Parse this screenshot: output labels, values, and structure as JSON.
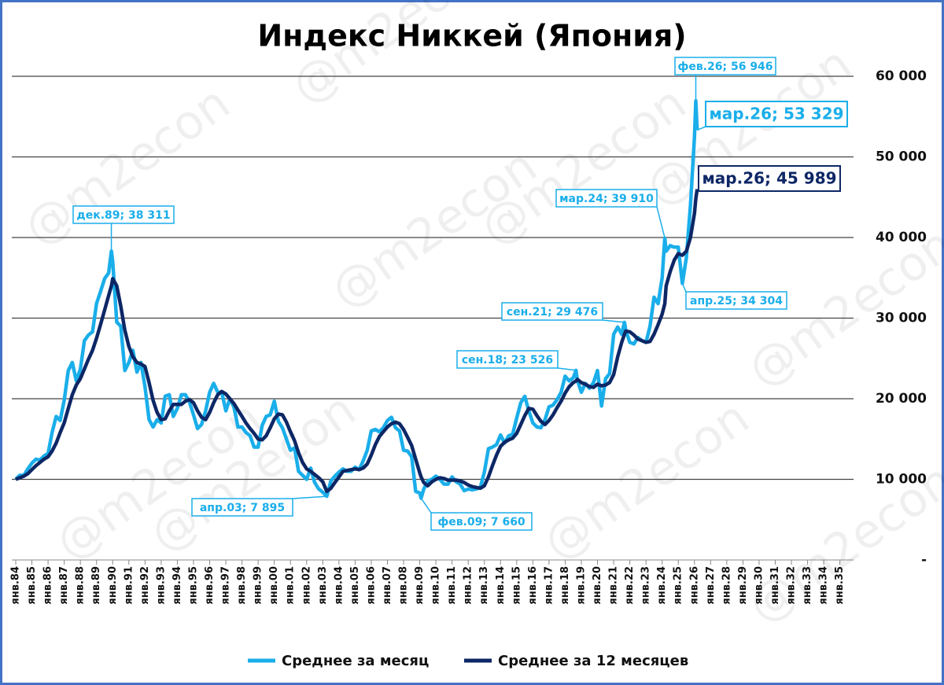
{
  "chart_data": {
    "type": "line",
    "title": "Индекс Никкей (Япония)",
    "watermark": "@m2econ",
    "grid": true,
    "ylim": [
      0,
      60000
    ],
    "yticks": [
      {
        "value": 0,
        "label": "-"
      },
      {
        "value": 10000,
        "label": "10 000"
      },
      {
        "value": 20000,
        "label": "20 000"
      },
      {
        "value": 30000,
        "label": "30 000"
      },
      {
        "value": 40000,
        "label": "40 000"
      },
      {
        "value": 50000,
        "label": "50 000"
      },
      {
        "value": 60000,
        "label": "60 000"
      }
    ],
    "xlim": [
      1984,
      2035.6
    ],
    "xticks": [
      {
        "value": 1984,
        "label": "янв.84"
      },
      {
        "value": 1985,
        "label": "янв.85"
      },
      {
        "value": 1986,
        "label": "янв.86"
      },
      {
        "value": 1987,
        "label": "янв.87"
      },
      {
        "value": 1988,
        "label": "янв.88"
      },
      {
        "value": 1989,
        "label": "янв.89"
      },
      {
        "value": 1990,
        "label": "янв.90"
      },
      {
        "value": 1991,
        "label": "янв.91"
      },
      {
        "value": 1992,
        "label": "янв.92"
      },
      {
        "value": 1993,
        "label": "янв.93"
      },
      {
        "value": 1994,
        "label": "янв.94"
      },
      {
        "value": 1995,
        "label": "янв.95"
      },
      {
        "value": 1996,
        "label": "янв.96"
      },
      {
        "value": 1997,
        "label": "янв.97"
      },
      {
        "value": 1998,
        "label": "янв.98"
      },
      {
        "value": 1999,
        "label": "янв.99"
      },
      {
        "value": 2000,
        "label": "янв.00"
      },
      {
        "value": 2001,
        "label": "янв.01"
      },
      {
        "value": 2002,
        "label": "янв.02"
      },
      {
        "value": 2003,
        "label": "янв.03"
      },
      {
        "value": 2004,
        "label": "янв.04"
      },
      {
        "value": 2005,
        "label": "янв.05"
      },
      {
        "value": 2006,
        "label": "янв.06"
      },
      {
        "value": 2007,
        "label": "янв.07"
      },
      {
        "value": 2008,
        "label": "янв.08"
      },
      {
        "value": 2009,
        "label": "янв.09"
      },
      {
        "value": 2010,
        "label": "янв.10"
      },
      {
        "value": 2011,
        "label": "янв.11"
      },
      {
        "value": 2012,
        "label": "янв.12"
      },
      {
        "value": 2013,
        "label": "янв.13"
      },
      {
        "value": 2014,
        "label": "янв.14"
      },
      {
        "value": 2015,
        "label": "янв.15"
      },
      {
        "value": 2016,
        "label": "янв.16"
      },
      {
        "value": 2017,
        "label": "янв.17"
      },
      {
        "value": 2018,
        "label": "янв.18"
      },
      {
        "value": 2019,
        "label": "янв.19"
      },
      {
        "value": 2020,
        "label": "янв.20"
      },
      {
        "value": 2021,
        "label": "янв.21"
      },
      {
        "value": 2022,
        "label": "янв.22"
      },
      {
        "value": 2023,
        "label": "янв.23"
      },
      {
        "value": 2024,
        "label": "янв.24"
      },
      {
        "value": 2025,
        "label": "янв.25"
      },
      {
        "value": 2026,
        "label": "янв.26"
      },
      {
        "value": 2027,
        "label": "янв.27"
      },
      {
        "value": 2028,
        "label": "янв.28"
      },
      {
        "value": 2029,
        "label": "янв.29"
      },
      {
        "value": 2030,
        "label": "янв.30"
      },
      {
        "value": 2031,
        "label": "янв.31"
      },
      {
        "value": 2032,
        "label": "янв.32"
      },
      {
        "value": 2033,
        "label": "янв.33"
      },
      {
        "value": 2034,
        "label": "янв.34"
      },
      {
        "value": 2035,
        "label": "янв.35"
      }
    ],
    "x": [
      1984,
      1984.25,
      1984.5,
      1984.75,
      1985,
      1985.25,
      1985.5,
      1985.75,
      1986,
      1986.25,
      1986.5,
      1986.75,
      1987,
      1987.25,
      1987.5,
      1987.75,
      1988,
      1988.25,
      1988.5,
      1988.75,
      1989,
      1989.25,
      1989.5,
      1989.75,
      1989.917,
      1990,
      1990.25,
      1990.5,
      1990.75,
      1991,
      1991.25,
      1991.5,
      1991.75,
      1992,
      1992.25,
      1992.5,
      1992.75,
      1993,
      1993.25,
      1993.5,
      1993.75,
      1994,
      1994.25,
      1994.5,
      1994.75,
      1995,
      1995.25,
      1995.5,
      1995.75,
      1996,
      1996.25,
      1996.5,
      1996.75,
      1997,
      1997.25,
      1997.5,
      1997.75,
      1998,
      1998.25,
      1998.5,
      1998.75,
      1999,
      1999.25,
      1999.5,
      1999.75,
      2000,
      2000.25,
      2000.5,
      2000.75,
      2001,
      2001.25,
      2001.5,
      2001.75,
      2002,
      2002.25,
      2002.5,
      2002.75,
      2003,
      2003.25,
      2003.5,
      2003.75,
      2004,
      2004.25,
      2004.5,
      2004.75,
      2005,
      2005.25,
      2005.5,
      2005.75,
      2006,
      2006.25,
      2006.5,
      2006.75,
      2007,
      2007.25,
      2007.5,
      2007.75,
      2008,
      2008.25,
      2008.5,
      2008.75,
      2009,
      2009.083,
      2009.25,
      2009.5,
      2009.75,
      2010,
      2010.25,
      2010.5,
      2010.75,
      2011,
      2011.25,
      2011.5,
      2011.75,
      2012,
      2012.25,
      2012.5,
      2012.75,
      2013,
      2013.25,
      2013.5,
      2013.75,
      2014,
      2014.25,
      2014.5,
      2014.75,
      2015,
      2015.25,
      2015.5,
      2015.75,
      2016,
      2016.25,
      2016.5,
      2016.75,
      2017,
      2017.25,
      2017.5,
      2017.75,
      2018,
      2018.25,
      2018.5,
      2018.667,
      2018.75,
      2019,
      2019.25,
      2019.5,
      2019.75,
      2020,
      2020.25,
      2020.5,
      2020.75,
      2021,
      2021.25,
      2021.5,
      2021.667,
      2021.75,
      2022,
      2022.25,
      2022.5,
      2022.75,
      2023,
      2023.25,
      2023.5,
      2023.75,
      2024,
      2024.167,
      2024.25,
      2024.5,
      2024.75,
      2025,
      2025.25,
      2025.5,
      2025.75,
      2026,
      2026.083,
      2026.167
    ],
    "series": [
      {
        "name": "Среднее за месяц",
        "color": "#1aaeea",
        "values": [
          10000,
          10500,
          10500,
          11300,
          12000,
          12500,
          12400,
          12900,
          13200,
          15800,
          17800,
          17300,
          19800,
          23500,
          24500,
          22200,
          23700,
          27200,
          27900,
          28300,
          31800,
          33300,
          34900,
          35600,
          38311,
          37000,
          29500,
          29000,
          23500,
          24500,
          26000,
          23300,
          24500,
          21500,
          17400,
          16500,
          17400,
          17000,
          20300,
          20500,
          17800,
          18800,
          20500,
          20500,
          19600,
          18000,
          16300,
          16800,
          18500,
          20800,
          21900,
          20800,
          20800,
          18500,
          20000,
          19000,
          16500,
          16500,
          15800,
          15400,
          14000,
          14000,
          16700,
          17800,
          18000,
          19700,
          17200,
          16400,
          15000,
          13600,
          13900,
          11000,
          10500,
          10000,
          11400,
          9600,
          8800,
          8400,
          7895,
          9800,
          10400,
          10900,
          11300,
          11000,
          11000,
          11500,
          11200,
          12300,
          13600,
          16000,
          16200,
          15900,
          16400,
          17300,
          17700,
          16400,
          16000,
          13600,
          13500,
          12800,
          8500,
          8300,
          7660,
          8800,
          9800,
          10000,
          10400,
          10000,
          9400,
          9400,
          10300,
          9700,
          9400,
          8600,
          8800,
          8700,
          8800,
          9000,
          10900,
          13800,
          14000,
          14300,
          15500,
          14500,
          15400,
          15600,
          17600,
          19500,
          20300,
          18500,
          17000,
          16500,
          16400,
          17400,
          19000,
          19200,
          19900,
          20800,
          22800,
          22200,
          22600,
          23526,
          22300,
          20800,
          21900,
          21300,
          22000,
          23500,
          19100,
          22500,
          23100,
          28000,
          28900,
          28000,
          29476,
          28500,
          27000,
          26800,
          27600,
          27200,
          27000,
          29000,
          32600,
          31800,
          35000,
          39910,
          38300,
          39000,
          38800,
          38800,
          34304,
          37500,
          44000,
          52500,
          56946,
          53329
        ]
      },
      {
        "name": "Среднее за 12 месяцев",
        "color": "#0d2766",
        "values": [
          10000,
          10200,
          10400,
          10700,
          11200,
          11700,
          12100,
          12500,
          12800,
          13500,
          14500,
          15800,
          17000,
          18800,
          20500,
          21700,
          22500,
          23700,
          24900,
          26000,
          27500,
          29200,
          31000,
          32800,
          34000,
          34900,
          34000,
          31500,
          28500,
          26500,
          25200,
          24500,
          24300,
          24000,
          22000,
          19800,
          18300,
          17400,
          17500,
          18500,
          19300,
          19300,
          19300,
          19700,
          19900,
          19500,
          18500,
          17700,
          17400,
          18300,
          19500,
          20500,
          20900,
          20600,
          20000,
          19400,
          18600,
          17800,
          17000,
          16300,
          15700,
          15000,
          14900,
          15400,
          16400,
          17500,
          18100,
          18000,
          17100,
          15900,
          14800,
          13300,
          12100,
          11300,
          11000,
          10600,
          10200,
          9700,
          8500,
          8900,
          9600,
          10300,
          11000,
          11100,
          11200,
          11300,
          11200,
          11400,
          11900,
          13000,
          14300,
          15300,
          15900,
          16500,
          16900,
          17100,
          16900,
          16200,
          15200,
          14200,
          12500,
          10800,
          10300,
          9600,
          9200,
          9700,
          10000,
          10200,
          10100,
          9900,
          9900,
          9900,
          9800,
          9600,
          9300,
          9100,
          9000,
          8900,
          9200,
          10300,
          11700,
          13000,
          14100,
          14600,
          14900,
          15100,
          15700,
          16800,
          17900,
          18800,
          18700,
          17900,
          17200,
          16800,
          17300,
          18000,
          18900,
          19700,
          20700,
          21500,
          22000,
          22200,
          22400,
          22000,
          21800,
          21500,
          21400,
          21800,
          21600,
          21700,
          22000,
          23000,
          25200,
          27000,
          28000,
          28400,
          28300,
          27900,
          27400,
          27200,
          27000,
          27100,
          28000,
          29200,
          30500,
          31800,
          34000,
          35800,
          37200,
          38000,
          37800,
          38300,
          40000,
          43000,
          44800,
          45989
        ]
      }
    ],
    "annotations": [
      {
        "text": "дек.89;  38 311",
        "x": 1989.917,
        "y": 38311,
        "color": "#1aaeea"
      },
      {
        "text": "апр.03;  7 895",
        "x": 2003.25,
        "y": 7895,
        "color": "#1aaeea"
      },
      {
        "text": "фев.09;  7 660",
        "x": 2009.083,
        "y": 7660,
        "color": "#1aaeea"
      },
      {
        "text": "сен.18;  23 526",
        "x": 2018.667,
        "y": 23526,
        "color": "#1aaeea"
      },
      {
        "text": "сен.21;  29 476",
        "x": 2021.667,
        "y": 29476,
        "color": "#1aaeea"
      },
      {
        "text": "мар.24;  39 910",
        "x": 2024.167,
        "y": 39910,
        "color": "#1aaeea"
      },
      {
        "text": "апр.25;  34 304",
        "x": 2025.25,
        "y": 34304,
        "color": "#1aaeea"
      },
      {
        "text": "фев.26;  56 946",
        "x": 2026.083,
        "y": 56946,
        "color": "#1aaeea"
      },
      {
        "text": "мар.26;  53 329",
        "x": 2026.167,
        "y": 53329,
        "color": "#1aaeea"
      },
      {
        "text": "мар.26;  45 989",
        "x": 2026.167,
        "y": 45989,
        "color": "#0d2766"
      }
    ]
  }
}
